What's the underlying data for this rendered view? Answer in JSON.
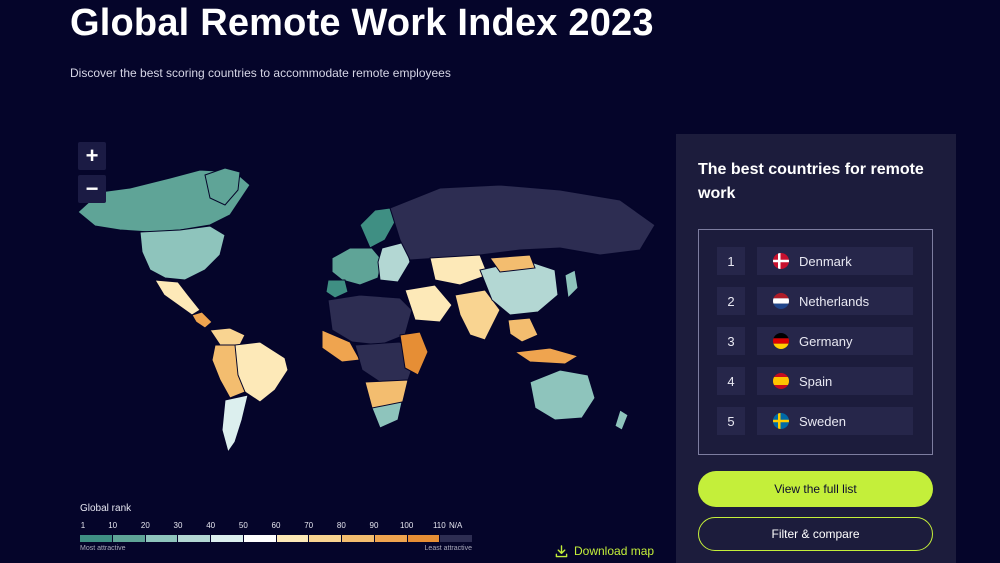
{
  "page": {
    "title": "Global Remote Work Index 2023",
    "subtitle": "Discover the best scoring countries to accommodate remote employees"
  },
  "map": {
    "zoom_in": "+",
    "zoom_out": "−",
    "legend": {
      "title": "Global rank",
      "ticks": [
        "1",
        "10",
        "20",
        "30",
        "40",
        "50",
        "60",
        "70",
        "80",
        "90",
        "100",
        "110",
        "N/A"
      ],
      "colors": [
        "#3f8f83",
        "#5fa497",
        "#8ec4bc",
        "#b3d7d3",
        "#dcefee",
        "#ffffff",
        "#fde9b8",
        "#f9d491",
        "#f3bd6f",
        "#efa44f",
        "#e68e35",
        "#2d2d52"
      ],
      "most": "Most attractive",
      "least": "Least attractive"
    },
    "download_label": "Download map"
  },
  "panel": {
    "title": "The best countries for remote work",
    "rankings": [
      {
        "rank": "1",
        "country": "Denmark",
        "flag": "denmark"
      },
      {
        "rank": "2",
        "country": "Netherlands",
        "flag": "netherlands"
      },
      {
        "rank": "3",
        "country": "Germany",
        "flag": "germany"
      },
      {
        "rank": "4",
        "country": "Spain",
        "flag": "spain"
      },
      {
        "rank": "5",
        "country": "Sweden",
        "flag": "sweden"
      }
    ],
    "primary_button": "View the full list",
    "secondary_button": "Filter & compare"
  }
}
